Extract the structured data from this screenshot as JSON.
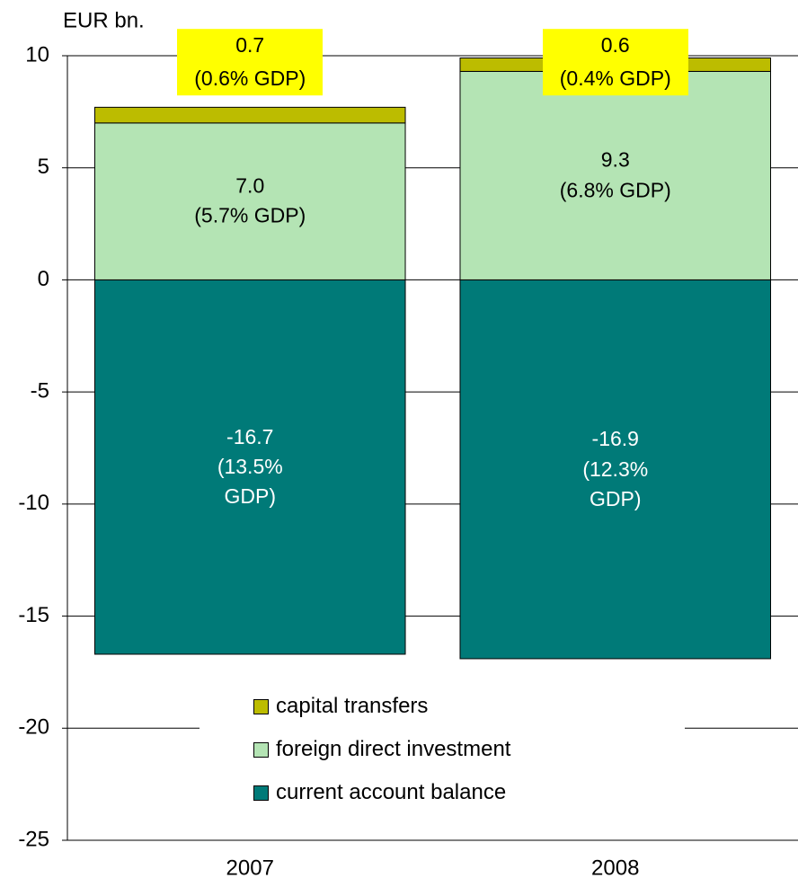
{
  "chart_data": {
    "type": "bar",
    "stacked": true,
    "y_label": "EUR bn.",
    "categories": [
      "2007",
      "2008"
    ],
    "series": [
      {
        "name": "current account balance",
        "color": "#007a78",
        "values": [
          -16.7,
          -16.9
        ],
        "value_labels": [
          "-16.7\n(13.5%\nGDP)",
          "-16.9\n(12.3%\nGDP)"
        ]
      },
      {
        "name": "foreign direct investment",
        "color": "#b4e4b4",
        "values": [
          7.0,
          9.3
        ],
        "value_labels": [
          "7.0\n(5.7% GDP)",
          "9.3\n(6.8% GDP)"
        ]
      },
      {
        "name": "capital transfers",
        "color": "#bcbc00",
        "values": [
          0.7,
          0.6
        ],
        "value_labels": [
          "0.7\n(0.6% GDP)",
          "0.6\n(0.4% GDP)"
        ]
      }
    ],
    "ylim": [
      -25,
      10
    ],
    "yticks": [
      -25,
      -20,
      -15,
      -10,
      -5,
      0,
      5,
      10
    ],
    "grid": true
  }
}
